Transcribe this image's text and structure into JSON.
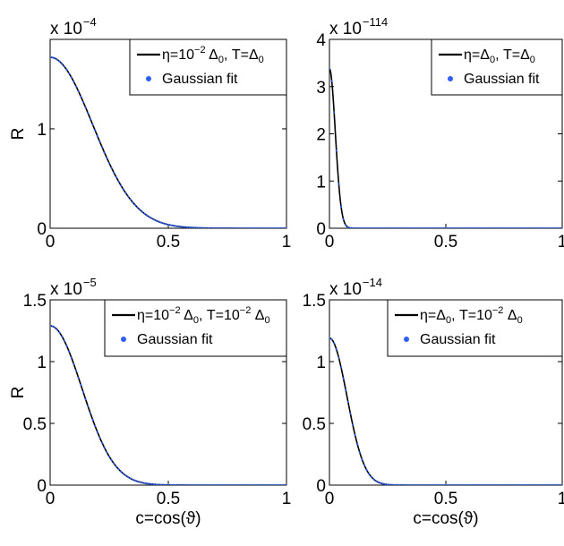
{
  "figure": {
    "panels": 4,
    "layout": "2x2 grid"
  },
  "chart_data": [
    {
      "type": "line",
      "panel": "top-left",
      "xlabel": "",
      "ylabel": "R",
      "xlim": [
        0,
        1
      ],
      "ylim": [
        0,
        1.9
      ],
      "x_ticks": [
        "0",
        "0.5",
        "1"
      ],
      "y_ticks": [
        {
          "value": 0,
          "label": "0"
        },
        {
          "value": 1,
          "label": "1"
        }
      ],
      "y_multiplier": {
        "base": "x 10",
        "exponent": "−4"
      },
      "curve": {
        "type": "gaussian",
        "peak": 1.72,
        "sigma": 0.18
      },
      "series": [
        {
          "name": "η=10⁻² Δ₀, T=Δ₀",
          "style": "solid-line",
          "color": "#000000"
        },
        {
          "name": "Gaussian fit",
          "style": "dots",
          "color": "#2f5ff5"
        }
      ],
      "legend": {
        "placement": "top-right",
        "line_main": "η=10",
        "line_exp": "−2",
        "line_mid": " Δ",
        "line_sub1": "0",
        "line_tail": ", T=Δ",
        "line_sub2": "0",
        "fit_label": "Gaussian fit"
      }
    },
    {
      "type": "line",
      "panel": "top-right",
      "xlabel": "",
      "ylabel": "",
      "xlim": [
        0,
        1
      ],
      "ylim": [
        0,
        4
      ],
      "x_ticks": [
        "0",
        "0.5",
        "1"
      ],
      "y_ticks": [
        {
          "value": 0,
          "label": "0"
        },
        {
          "value": 1,
          "label": "1"
        },
        {
          "value": 2,
          "label": "2"
        },
        {
          "value": 3,
          "label": "3"
        },
        {
          "value": 4,
          "label": "4"
        }
      ],
      "y_multiplier": {
        "base": "x 10",
        "exponent": "−114"
      },
      "curve": {
        "type": "gaussian",
        "peak": 3.38,
        "sigma": 0.025
      },
      "series": [
        {
          "name": "η=Δ₀, T=Δ₀",
          "style": "solid-line",
          "color": "#000000"
        },
        {
          "name": "Gaussian fit",
          "style": "dots",
          "color": "#2f5ff5"
        }
      ],
      "legend": {
        "placement": "top-right",
        "line_main": "η=Δ",
        "line_exp": "",
        "line_mid": "",
        "line_sub1": "0",
        "line_tail": ", T=Δ",
        "line_sub2": "0",
        "fit_label": "Gaussian fit"
      }
    },
    {
      "type": "line",
      "panel": "bottom-left",
      "xlabel": "c=cos(ϑ)",
      "ylabel": "R",
      "xlim": [
        0,
        1
      ],
      "ylim": [
        0,
        1.5
      ],
      "x_ticks": [
        "0",
        "0.5",
        "1"
      ],
      "y_ticks": [
        {
          "value": 0,
          "label": "0"
        },
        {
          "value": 0.5,
          "label": "0.5"
        },
        {
          "value": 1,
          "label": "1"
        },
        {
          "value": 1.5,
          "label": "1.5"
        }
      ],
      "y_multiplier": {
        "base": "x 10",
        "exponent": "−5"
      },
      "curve": {
        "type": "gaussian",
        "peak": 1.29,
        "sigma": 0.135
      },
      "series": [
        {
          "name": "η=10⁻² Δ₀, T=10⁻² Δ₀",
          "style": "solid-line",
          "color": "#000000"
        },
        {
          "name": "Gaussian fit",
          "style": "dots",
          "color": "#2f5ff5"
        }
      ],
      "legend": {
        "placement": "top-right",
        "line_main": "η=10",
        "line_exp": "−2",
        "line_mid": " Δ",
        "line_sub1": "0",
        "line_tail": ", T=10",
        "line_exp2": "−2",
        "line_tail2": " Δ",
        "line_sub2": "0",
        "fit_label": "Gaussian fit"
      }
    },
    {
      "type": "line",
      "panel": "bottom-right",
      "xlabel": "c=cos(ϑ)",
      "ylabel": "",
      "xlim": [
        0,
        1
      ],
      "ylim": [
        0,
        1.5
      ],
      "x_ticks": [
        "0",
        "0.5",
        "1"
      ],
      "y_ticks": [
        {
          "value": 0,
          "label": "0"
        },
        {
          "value": 0.5,
          "label": "0.5"
        },
        {
          "value": 1,
          "label": "1"
        },
        {
          "value": 1.5,
          "label": "1.5"
        }
      ],
      "y_multiplier": {
        "base": "x 10",
        "exponent": "−14"
      },
      "curve": {
        "type": "gaussian",
        "peak": 1.19,
        "sigma": 0.075
      },
      "series": [
        {
          "name": "η=Δ₀, T=10⁻² Δ₀",
          "style": "solid-line",
          "color": "#000000"
        },
        {
          "name": "Gaussian fit",
          "style": "dots",
          "color": "#2f5ff5"
        }
      ],
      "legend": {
        "placement": "top-right",
        "line_main": "η=Δ",
        "line_exp": "",
        "line_mid": "",
        "line_sub1": "0",
        "line_tail": ", T=10",
        "line_exp2": "−2",
        "line_tail2": " Δ",
        "line_sub2": "0",
        "fit_label": "Gaussian fit"
      }
    }
  ]
}
